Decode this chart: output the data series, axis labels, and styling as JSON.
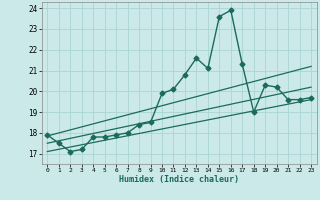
{
  "title": "",
  "xlabel": "Humidex (Indice chaleur)",
  "ylabel": "",
  "background_color": "#cce9e9",
  "grid_color": "#aad4d4",
  "line_color": "#1a6b5a",
  "xlim": [
    -0.5,
    23.5
  ],
  "ylim": [
    16.5,
    24.3
  ],
  "x_ticks": [
    0,
    1,
    2,
    3,
    4,
    5,
    6,
    7,
    8,
    9,
    10,
    11,
    12,
    13,
    14,
    15,
    16,
    17,
    18,
    19,
    20,
    21,
    22,
    23
  ],
  "y_ticks": [
    17,
    18,
    19,
    20,
    21,
    22,
    23,
    24
  ],
  "series": [
    {
      "x": [
        0,
        1,
        2,
        3,
        4,
        5,
        6,
        7,
        8,
        9,
        10,
        11,
        12,
        13,
        14,
        15,
        16,
        17,
        18,
        19,
        20,
        21,
        22,
        23
      ],
      "y": [
        17.9,
        17.5,
        17.1,
        17.2,
        17.8,
        17.8,
        17.9,
        18.0,
        18.4,
        18.5,
        19.9,
        20.1,
        20.8,
        21.6,
        21.1,
        23.6,
        23.9,
        21.3,
        19.0,
        20.3,
        20.2,
        19.6,
        19.6,
        19.7
      ],
      "marker": "D",
      "markersize": 2.5,
      "linewidth": 1.0
    },
    {
      "x": [
        0,
        23
      ],
      "y": [
        17.85,
        21.2
      ],
      "marker": null,
      "linewidth": 0.9
    },
    {
      "x": [
        0,
        23
      ],
      "y": [
        17.5,
        20.2
      ],
      "marker": null,
      "linewidth": 0.9
    },
    {
      "x": [
        0,
        23
      ],
      "y": [
        17.1,
        19.6
      ],
      "marker": null,
      "linewidth": 0.9
    }
  ]
}
